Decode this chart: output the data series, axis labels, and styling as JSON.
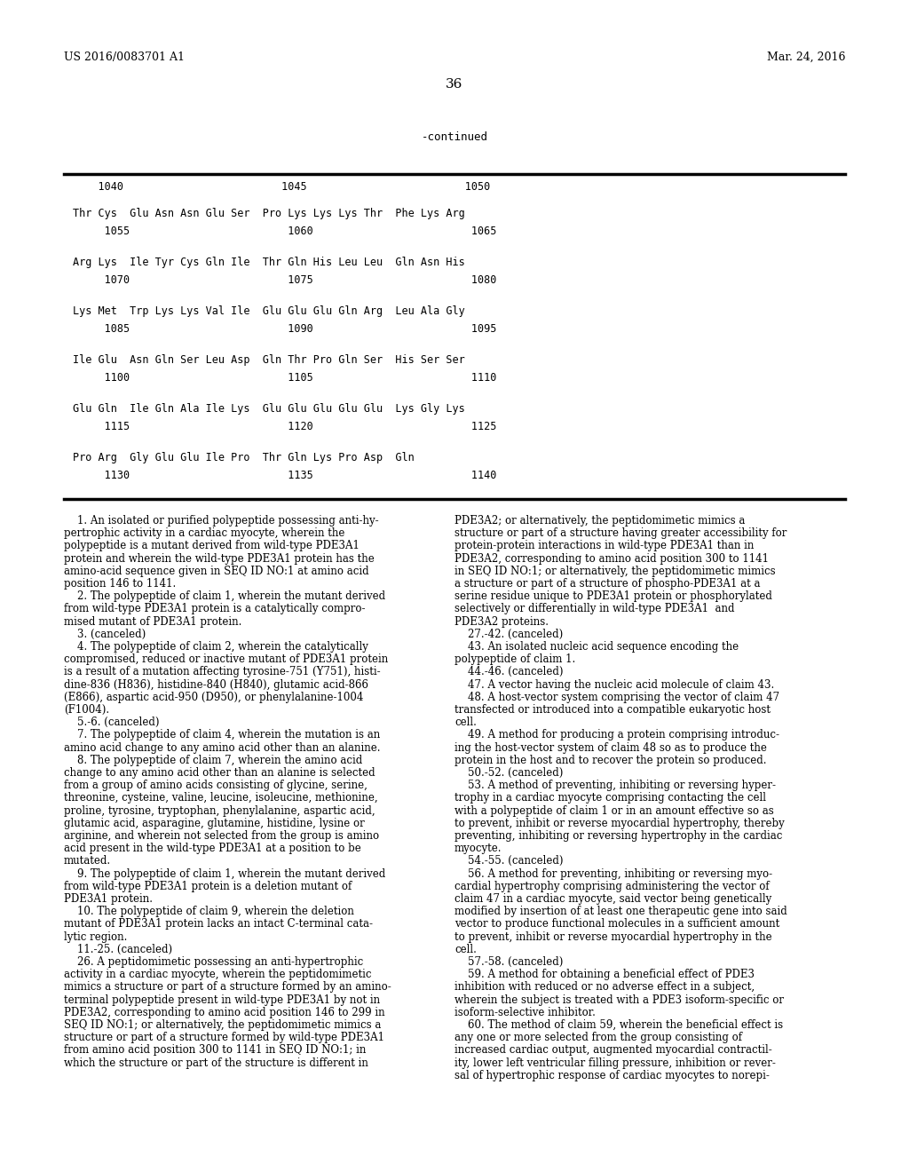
{
  "background_color": "#ffffff",
  "header_left": "US 2016/0083701 A1",
  "header_right": "Mar. 24, 2016",
  "page_number": "36",
  "continued_label": "-continued",
  "table_number_row": "    1040                         1045                         1050",
  "table_rows": [
    {
      "seq": "Thr Cys  Glu Asn Asn Glu Ser  Pro Lys Lys Lys Thr  Phe Lys Arg",
      "num": "     1055                         1060                         1065"
    },
    {
      "seq": "Arg Lys  Ile Tyr Cys Gln Ile  Thr Gln His Leu Leu  Gln Asn His",
      "num": "     1070                         1075                         1080"
    },
    {
      "seq": "Lys Met  Trp Lys Lys Val Ile  Glu Glu Glu Gln Arg  Leu Ala Gly",
      "num": "     1085                         1090                         1095"
    },
    {
      "seq": "Ile Glu  Asn Gln Ser Leu Asp  Gln Thr Pro Gln Ser  His Ser Ser",
      "num": "     1100                         1105                         1110"
    },
    {
      "seq": "Glu Gln  Ile Gln Ala Ile Lys  Glu Glu Glu Glu Glu  Lys Gly Lys",
      "num": "     1115                         1120                         1125"
    },
    {
      "seq": "Pro Arg  Gly Glu Glu Ile Pro  Thr Gln Lys Pro Asp  Gln",
      "num": "     1130                         1135                         1140"
    }
  ],
  "body_left": [
    [
      "    ",
      "1",
      ". An isolated or purified polypeptide possessing anti-hy-"
    ],
    [
      "pertrophic activity in a cardiac myocyte, wherein the"
    ],
    [
      "polypeptide is a mutant derived from wild-type PDE3A1"
    ],
    [
      "protein and wherein the wild-type PDE3A1 protein has the"
    ],
    [
      "amino-acid sequence given in SEQ ID NO:1 at amino acid"
    ],
    [
      "position 146 to 1141."
    ],
    [
      "    ",
      "2",
      ". The polypeptide of claim ",
      "1",
      ", wherein the mutant derived"
    ],
    [
      "from wild-type PDE3A1 protein is a catalytically compro-"
    ],
    [
      "mised mutant of PDE3A1 protein."
    ],
    [
      "    ",
      "3",
      ". (canceled)"
    ],
    [
      "    ",
      "4",
      ". The polypeptide of claim ",
      "2",
      ", wherein the catalytically"
    ],
    [
      "compromised, reduced or inactive mutant of PDE3A1 protein"
    ],
    [
      "is a result of a mutation affecting tyrosine-751 (Y751), histi-"
    ],
    [
      "dine-836 (H836), histidine-840 (H840), glutamic acid-866"
    ],
    [
      "(E866), aspartic acid-950 (D950), or phenylalanine-1004"
    ],
    [
      "(F1004)."
    ],
    [
      "    ",
      "5",
      ".-",
      "6",
      ". (canceled)"
    ],
    [
      "    ",
      "7",
      ". The polypeptide of claim ",
      "4",
      ", wherein the mutation is an"
    ],
    [
      "amino acid change to any amino acid other than an alanine."
    ],
    [
      "    ",
      "8",
      ". The polypeptide of claim ",
      "7",
      ", wherein the amino acid"
    ],
    [
      "change to any amino acid other than an alanine is selected"
    ],
    [
      "from a group of amino acids consisting of glycine, serine,"
    ],
    [
      "threonine, cysteine, valine, leucine, isoleucine, methionine,"
    ],
    [
      "proline, tyrosine, tryptophan, phenylalanine, aspartic acid,"
    ],
    [
      "glutamic acid, asparagine, glutamine, histidine, lysine or"
    ],
    [
      "arginine, and wherein not selected from the group is amino"
    ],
    [
      "acid present in the wild-type PDE3A1 at a position to be"
    ],
    [
      "mutated."
    ],
    [
      "    ",
      "9",
      ". The polypeptide of claim ",
      "1",
      ", wherein the mutant derived"
    ],
    [
      "from wild-type PDE3A1 protein is a deletion mutant of"
    ],
    [
      "PDE3A1 protein."
    ],
    [
      "    ",
      "10",
      ". The polypeptide of claim ",
      "9",
      ", wherein the deletion"
    ],
    [
      "mutant of PDE3A1 protein lacks an intact C-terminal cata-"
    ],
    [
      "lytic region."
    ],
    [
      "    ",
      "11",
      ".-",
      "25",
      ". (canceled)"
    ],
    [
      "    ",
      "26",
      ". A peptidomimetic possessing an anti-hypertrophic"
    ],
    [
      "activity in a cardiac myocyte, wherein the peptidomimetic"
    ],
    [
      "mimics a structure or part of a structure formed by an amino-"
    ],
    [
      "terminal polypeptide present in wild-type PDE3A1 by not in"
    ],
    [
      "PDE3A2, corresponding to amino acid position 146 to 299 in"
    ],
    [
      "SEQ ID NO:1; or alternatively, the peptidomimetic mimics a"
    ],
    [
      "structure or part of a structure formed by wild-type PDE3A1"
    ],
    [
      "from amino acid position ",
      "300",
      " to 1141 in SEQ ID NO:1; in"
    ],
    [
      "which the structure or part of the structure is different in"
    ]
  ],
  "body_right": [
    [
      "PDE3A2; or alternatively, the peptidomimetic mimics a"
    ],
    [
      "structure or part of a structure having greater accessibility for"
    ],
    [
      "protein-protein interactions in wild-type PDE3A1 than in"
    ],
    [
      "PDE3A2, corresponding to amino acid position 300 to 1141"
    ],
    [
      "in SEQ ID NO:1; or alternatively, the peptidomimetic mimics"
    ],
    [
      "a structure or part of a structure of phospho-PDE3A1 at a"
    ],
    [
      "serine residue unique to PDE3A1 protein or phosphorylated"
    ],
    [
      "selectively or differentially in wild-type PDE3A1  and"
    ],
    [
      "PDE3A2 proteins."
    ],
    [
      "    ",
      "27",
      ".-",
      "42",
      ". (canceled)"
    ],
    [
      "    ",
      "43",
      ". An isolated nucleic acid sequence encoding the"
    ],
    [
      "polypeptide of claim ",
      "1",
      "."
    ],
    [
      "    ",
      "44",
      ".-",
      "46",
      ". (canceled)"
    ],
    [
      "    ",
      "47",
      ". A vector having the nucleic acid molecule of claim ",
      "43",
      "."
    ],
    [
      "    ",
      "48",
      ". A host-vector system comprising the vector of claim ",
      "47"
    ],
    [
      "transfected or introduced into a compatible eukaryotic host"
    ],
    [
      "cell."
    ],
    [
      "    ",
      "49",
      ". A method for producing a protein comprising introduc-"
    ],
    [
      "ing the host-vector system of claim ",
      "48",
      " so as to produce the"
    ],
    [
      "protein in the host and to recover the protein so produced."
    ],
    [
      "    ",
      "50",
      ".-",
      "52",
      ". (canceled)"
    ],
    [
      "    ",
      "53",
      ". A method of preventing, inhibiting or reversing hyper-"
    ],
    [
      "trophy in a cardiac myocyte comprising contacting the cell"
    ],
    [
      "with a polypeptide of claim ",
      "1",
      " or in an amount effective so as"
    ],
    [
      "to prevent, inhibit or reverse myocardial hypertrophy, thereby"
    ],
    [
      "preventing, inhibiting or reversing hypertrophy in the cardiac"
    ],
    [
      "myocyte."
    ],
    [
      "    ",
      "54",
      ".-",
      "55",
      ". (canceled)"
    ],
    [
      "    ",
      "56",
      ". A method for preventing, inhibiting or reversing myo-"
    ],
    [
      "cardial hypertrophy comprising administering the vector of"
    ],
    [
      "claim ",
      "47",
      " in a cardiac myocyte, said vector being genetically"
    ],
    [
      "modified by insertion of at least one therapeutic gene into said"
    ],
    [
      "vector to produce functional molecules in a sufficient amount"
    ],
    [
      "to prevent, inhibit or reverse myocardial hypertrophy in the"
    ],
    [
      "cell."
    ],
    [
      "    ",
      "57",
      ".-",
      "58",
      ". (canceled)"
    ],
    [
      "    ",
      "59",
      ". A method for obtaining a beneficial effect of PDE3"
    ],
    [
      "inhibition with reduced or no adverse effect in a subject,"
    ],
    [
      "wherein the subject is treated with a PDE3 isoform-specific or"
    ],
    [
      "isoform-selective inhibitor."
    ],
    [
      "    ",
      "60",
      ". The method of claim ",
      "59",
      ", wherein the beneficial effect is"
    ],
    [
      "any one or more selected from the group consisting of"
    ],
    [
      "increased cardiac output, augmented myocardial contractil-"
    ],
    [
      "ity, lower left ventricular filling pressure, inhibition or rever-"
    ],
    [
      "sal of hypertrophic response of cardiac myocytes to norepi-"
    ]
  ]
}
